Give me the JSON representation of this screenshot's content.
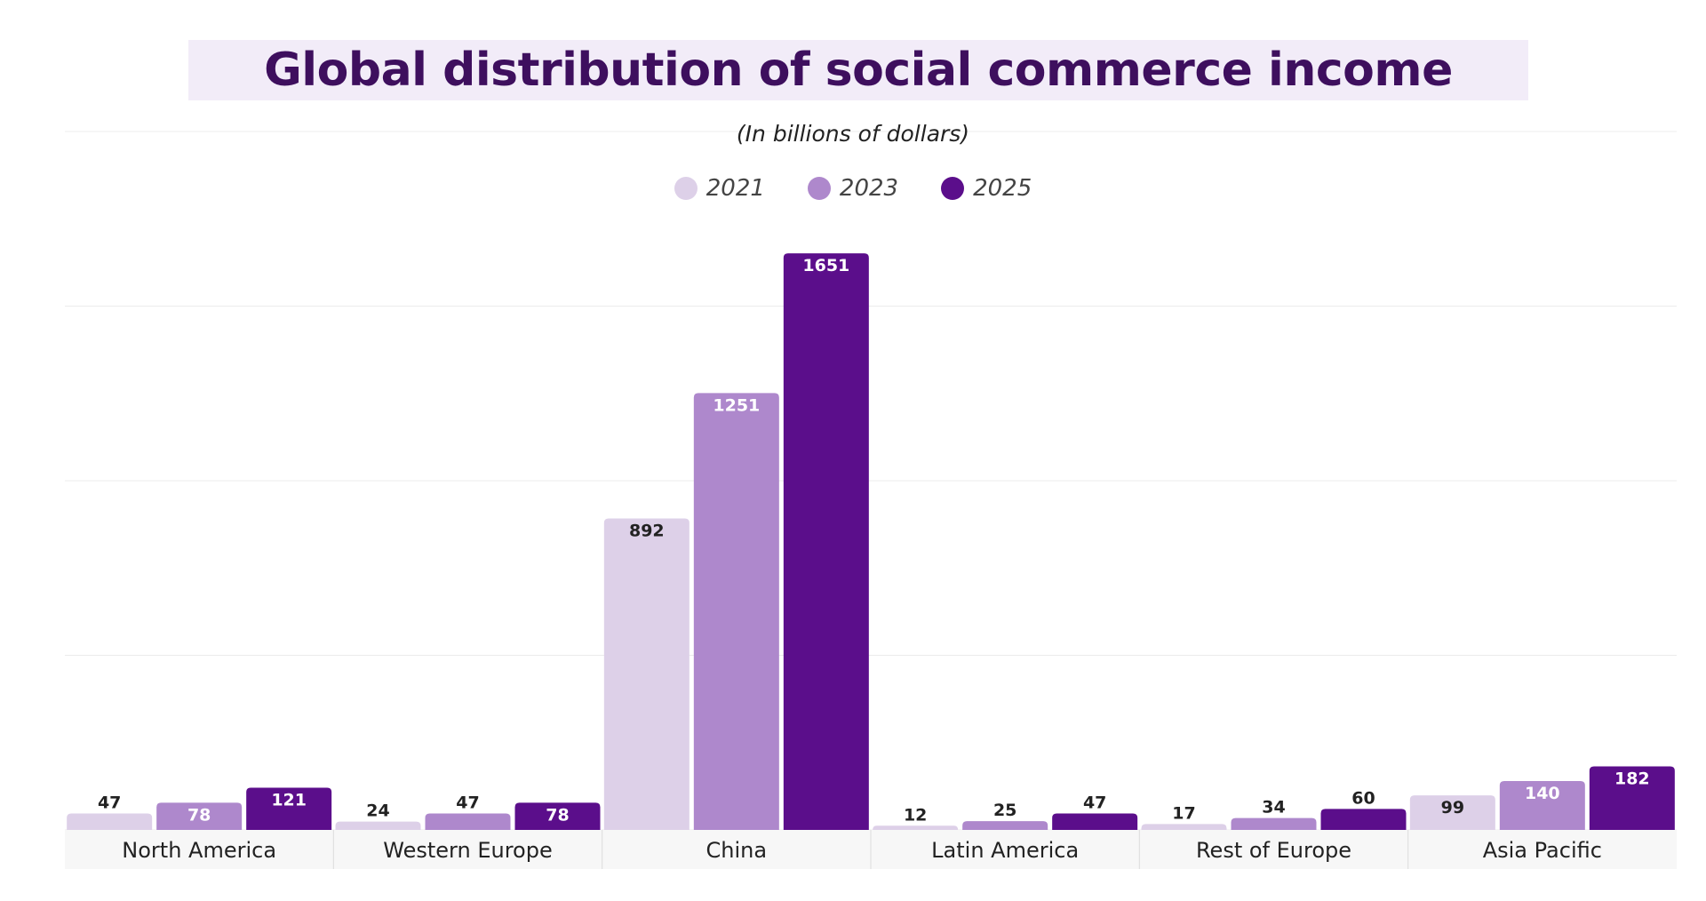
{
  "chart_data": {
    "type": "bar",
    "title": "Global distribution of social commerce income",
    "subtitle": "(In billions of dollars)",
    "categories": [
      "North America",
      "Western Europe",
      "China",
      "Latin America",
      "Rest of Europe",
      "Asia Pacific"
    ],
    "series": [
      {
        "name": "2021",
        "color": "#ddd0e8",
        "label_color": "#222222",
        "values": [
          47,
          24,
          892,
          12,
          17,
          99
        ]
      },
      {
        "name": "2023",
        "color": "#ae88cc",
        "label_color": "#ffffff",
        "values": [
          78,
          47,
          1251,
          25,
          34,
          140
        ]
      },
      {
        "name": "2025",
        "color": "#5b0e8b",
        "label_color": "#ffffff",
        "values": [
          121,
          78,
          1651,
          47,
          60,
          182
        ]
      }
    ],
    "xlabel": "",
    "ylabel": "",
    "ylim": [
      0,
      2000
    ],
    "grid": true,
    "legend": "top-center"
  }
}
